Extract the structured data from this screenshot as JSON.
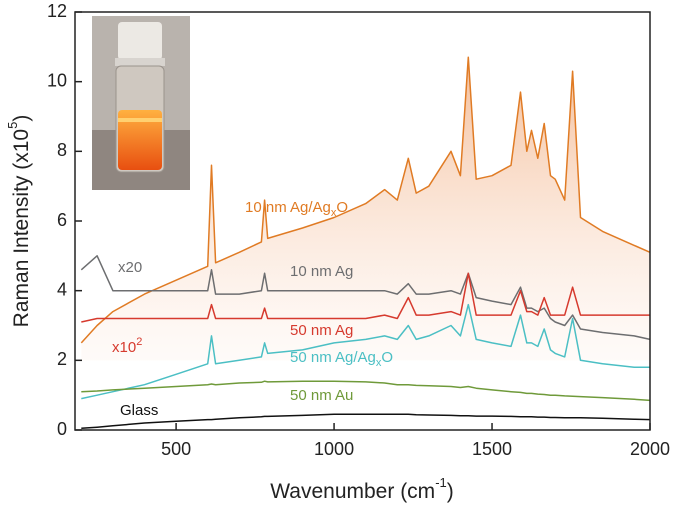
{
  "chart_data": {
    "type": "line",
    "ylabel": [
      "Raman Intensity (x10",
      "5",
      ")"
    ],
    "xlabel": [
      "Wavenumber (cm",
      "-1",
      ")"
    ],
    "xlim": [
      180,
      2000
    ],
    "ylim": [
      0,
      12
    ],
    "xticks": [
      500,
      1000,
      1500,
      2000
    ],
    "yticks": [
      0,
      2,
      4,
      6,
      8,
      10,
      12
    ],
    "annotations": [
      [
        "x20"
      ],
      [
        "x10",
        "2"
      ]
    ],
    "x": [
      200,
      250,
      300,
      400,
      500,
      600,
      612,
      625,
      700,
      770,
      780,
      790,
      900,
      1000,
      1100,
      1160,
      1200,
      1235,
      1260,
      1300,
      1370,
      1400,
      1425,
      1450,
      1500,
      1560,
      1590,
      1610,
      1625,
      1645,
      1665,
      1685,
      1700,
      1730,
      1755,
      1780,
      1850,
      1950,
      2000
    ],
    "series": [
      {
        "label": [
          "10 nm Ag/Ag",
          "x",
          "O"
        ],
        "color": "#e07b24",
        "values": [
          2.5,
          3.0,
          3.4,
          3.9,
          4.3,
          4.7,
          7.6,
          4.8,
          5.1,
          5.4,
          6.6,
          5.5,
          5.8,
          6.1,
          6.5,
          6.9,
          6.6,
          7.8,
          6.8,
          7.0,
          8.0,
          7.3,
          10.7,
          7.2,
          7.3,
          7.6,
          9.7,
          8.0,
          8.6,
          7.8,
          8.8,
          7.3,
          7.2,
          6.6,
          10.3,
          6.1,
          5.7,
          5.3,
          5.1
        ]
      },
      {
        "label": [
          "10 nm Ag"
        ],
        "color": "#6d6e70",
        "values": [
          4.6,
          5.0,
          4.0,
          4.0,
          4.0,
          4.0,
          4.6,
          3.9,
          3.9,
          4.0,
          4.5,
          4.0,
          4.0,
          4.0,
          4.0,
          4.0,
          3.9,
          4.2,
          3.9,
          3.9,
          4.0,
          3.9,
          4.5,
          3.8,
          3.7,
          3.6,
          4.1,
          3.5,
          3.5,
          3.4,
          3.5,
          3.2,
          3.1,
          3.0,
          3.3,
          2.9,
          2.8,
          2.7,
          2.6
        ]
      },
      {
        "label": [
          "50 nm Ag"
        ],
        "color": "#d63a2e",
        "values": [
          3.1,
          3.2,
          3.2,
          3.2,
          3.2,
          3.2,
          3.6,
          3.2,
          3.2,
          3.2,
          3.5,
          3.2,
          3.2,
          3.2,
          3.2,
          3.3,
          3.2,
          3.8,
          3.3,
          3.3,
          3.4,
          3.3,
          4.5,
          3.3,
          3.3,
          3.3,
          4.0,
          3.4,
          3.4,
          3.3,
          3.8,
          3.3,
          3.3,
          3.3,
          4.1,
          3.3,
          3.3,
          3.3,
          3.3
        ]
      },
      {
        "label": [
          "50 nm Ag/Ag",
          "x",
          "O"
        ],
        "color": "#4bbfc4",
        "values": [
          0.9,
          1.0,
          1.1,
          1.3,
          1.6,
          1.9,
          2.7,
          1.9,
          2.0,
          2.1,
          2.5,
          2.2,
          2.3,
          2.5,
          2.6,
          2.7,
          2.6,
          3.0,
          2.6,
          2.7,
          3.0,
          2.7,
          3.6,
          2.6,
          2.5,
          2.4,
          3.3,
          2.5,
          2.5,
          2.4,
          2.9,
          2.3,
          2.2,
          2.1,
          3.2,
          2.0,
          1.9,
          1.8,
          1.8
        ]
      },
      {
        "label": [
          "50 nm Au"
        ],
        "color": "#6f9a3a",
        "values": [
          1.1,
          1.12,
          1.15,
          1.2,
          1.25,
          1.3,
          1.32,
          1.3,
          1.35,
          1.37,
          1.4,
          1.38,
          1.4,
          1.4,
          1.38,
          1.35,
          1.3,
          1.3,
          1.28,
          1.27,
          1.25,
          1.22,
          1.25,
          1.2,
          1.15,
          1.1,
          1.08,
          1.05,
          1.05,
          1.03,
          1.02,
          1.0,
          1.0,
          0.98,
          0.97,
          0.96,
          0.93,
          0.88,
          0.85
        ]
      },
      {
        "label": [
          "Glass"
        ],
        "color": "#111111",
        "values": [
          0.05,
          0.08,
          0.12,
          0.2,
          0.25,
          0.3,
          0.3,
          0.31,
          0.35,
          0.38,
          0.39,
          0.39,
          0.42,
          0.45,
          0.45,
          0.45,
          0.45,
          0.45,
          0.44,
          0.43,
          0.42,
          0.41,
          0.41,
          0.4,
          0.4,
          0.39,
          0.38,
          0.38,
          0.38,
          0.37,
          0.37,
          0.36,
          0.36,
          0.35,
          0.35,
          0.35,
          0.34,
          0.31,
          0.3
        ]
      }
    ]
  }
}
